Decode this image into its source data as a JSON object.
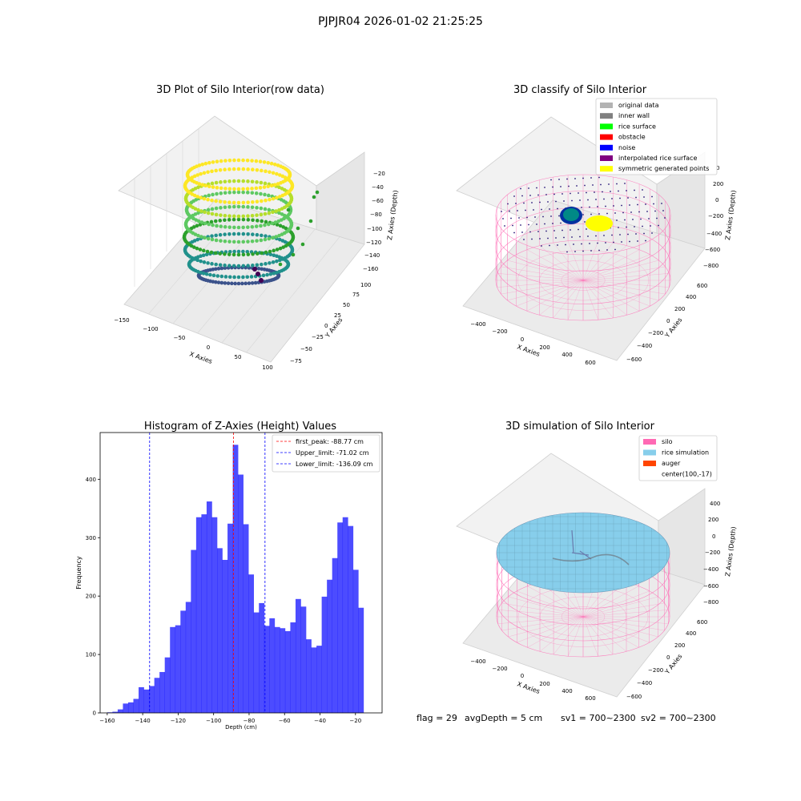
{
  "figure": {
    "suptitle": "PJPJR04 2026-01-02 21:25:25",
    "footer": {
      "flag": "flag = 29",
      "avg_depth": "avgDepth = 5 cm",
      "sv1": "sv1 = 700~2300",
      "sv2": "sv2 = 700~2300"
    }
  },
  "panels": {
    "raw": {
      "title": "3D Plot of Silo Interior(row data)",
      "xlabel": "X Axies",
      "ylabel": "Y Axies",
      "zlabel": "Z Axies (Depth)",
      "xticks": [
        "−150",
        "−100",
        "−50",
        "0",
        "50",
        "100"
      ],
      "yticks": [
        "−75",
        "−50",
        "−25",
        "0",
        "25",
        "50",
        "75",
        "100"
      ],
      "zticks": [
        "−20",
        "−40",
        "−60",
        "−80",
        "−100",
        "−120",
        "−140",
        "−160"
      ],
      "colormap": "viridis"
    },
    "classify": {
      "title": "3D classify of Silo Interior",
      "xlabel": "X Axies",
      "ylabel": "Y Axies",
      "zlabel": "Z Axies (Depth)",
      "xticks": [
        "−400",
        "−200",
        "0",
        "200",
        "400",
        "600"
      ],
      "yticks": [
        "−600",
        "−400",
        "−200",
        "0",
        "200",
        "400",
        "600"
      ],
      "zticks": [
        "200",
        "0",
        "−200",
        "−400",
        "−600",
        "−800"
      ],
      "ztick_top_partial": "0",
      "legend": [
        {
          "label": "original data",
          "color": "#b3b3b3"
        },
        {
          "label": "inner wall",
          "color": "#808080"
        },
        {
          "label": "rice surface",
          "color": "#00ff00"
        },
        {
          "label": "obstacle",
          "color": "#ff0000"
        },
        {
          "label": "noise",
          "color": "#0000ff"
        },
        {
          "label": "interpolated rice surface",
          "color": "#800080"
        },
        {
          "label": "symmetric generated points",
          "color": "#ffff00"
        }
      ]
    },
    "simulation": {
      "title": "3D simulation of Silo Interior",
      "xlabel": "X Axies",
      "ylabel": "Y Axies",
      "zlabel": "Z Axies (Depth)",
      "xticks": [
        "−400",
        "−200",
        "0",
        "200",
        "400",
        "600"
      ],
      "yticks": [
        "−600",
        "−400",
        "−200",
        "0",
        "200",
        "400",
        "600"
      ],
      "zticks": [
        "400",
        "200",
        "0",
        "−200",
        "−400",
        "−600",
        "−800"
      ],
      "legend": [
        {
          "label": "silo",
          "color": "#ff69b4"
        },
        {
          "label": "rice simulation",
          "color": "#87ceeb"
        },
        {
          "label": "auger",
          "color": "#ff4500"
        },
        {
          "label": "center(100,-17)",
          "color": ""
        }
      ]
    }
  },
  "chart_data": {
    "type": "bar",
    "title": "Histogram of Z-Axies (Height) Values",
    "xlabel": "Depth (cm)",
    "ylabel": "Frequency",
    "xlim": [
      -164,
      -5
    ],
    "ylim": [
      0,
      480
    ],
    "xticks": [
      -160,
      -140,
      -120,
      -100,
      -80,
      -60,
      -40,
      -20
    ],
    "yticks": [
      0,
      100,
      200,
      300,
      400
    ],
    "bar_color": "#0000ff",
    "bar_alpha": 0.7,
    "bin_start": -160,
    "bin_width": 2.95,
    "values": [
      1,
      2,
      6,
      16,
      18,
      24,
      44,
      40,
      46,
      60,
      70,
      95,
      147,
      150,
      175,
      190,
      279,
      335,
      340,
      362,
      335,
      282,
      262,
      324,
      459,
      408,
      323,
      237,
      172,
      188,
      149,
      162,
      147,
      145,
      140,
      155,
      195,
      182,
      126,
      112,
      115,
      199,
      228,
      265,
      326,
      335,
      320,
      245,
      180
    ],
    "vlines": [
      {
        "label": "first_peak: -88.77 cm",
        "x": -88.77,
        "color": "#ff0000"
      },
      {
        "label": "Upper_limit: -71.02 cm",
        "x": -71.02,
        "color": "#0000ff"
      },
      {
        "label": "Lower_limit: -136.09 cm",
        "x": -136.09,
        "color": "#0000ff"
      }
    ],
    "legend": "top-right",
    "grid": false
  }
}
